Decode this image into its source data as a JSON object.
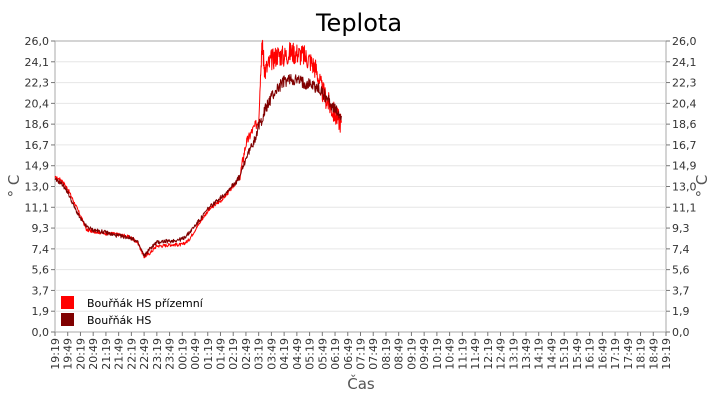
{
  "chart_data": {
    "type": "line",
    "title": "Teplota",
    "xlabel": "Čas",
    "ylabel": "° C",
    "ylim": [
      0,
      26
    ],
    "y_ticks": [
      "0,0",
      "1,9",
      "3,7",
      "5,6",
      "7,4",
      "9,3",
      "11,1",
      "13,0",
      "14,9",
      "16,7",
      "18,6",
      "20,4",
      "22,3",
      "24,1",
      "26,0"
    ],
    "x_ticks": [
      "19:19",
      "19:49",
      "20:19",
      "20:49",
      "21:19",
      "21:49",
      "22:19",
      "22:49",
      "23:19",
      "23:49",
      "00:19",
      "00:49",
      "01:19",
      "01:49",
      "02:19",
      "02:49",
      "03:19",
      "03:49",
      "04:19",
      "04:49",
      "05:19",
      "05:49",
      "06:19",
      "06:49",
      "07:19",
      "07:49",
      "08:19",
      "08:49",
      "09:19",
      "09:49",
      "10:19",
      "10:49",
      "11:19",
      "11:49",
      "12:19",
      "12:49",
      "13:19",
      "13:49",
      "14:19",
      "14:49",
      "15:19",
      "15:49",
      "16:19",
      "16:49",
      "17:19",
      "17:49",
      "18:19",
      "18:49",
      "19:19"
    ],
    "legend_position": "bottom-left",
    "grid": true,
    "series": [
      {
        "name": "Bouřňák HS přízemní",
        "color": "#ff0000",
        "points": [
          [
            0,
            13.8
          ],
          [
            0.5,
            13.6
          ],
          [
            1,
            12.8
          ],
          [
            1.5,
            11.6
          ],
          [
            2,
            10.4
          ],
          [
            2.5,
            9.1
          ],
          [
            3,
            9.0
          ],
          [
            3.5,
            8.9
          ],
          [
            4,
            8.8
          ],
          [
            4.5,
            8.8
          ],
          [
            5,
            8.7
          ],
          [
            5.5,
            8.6
          ],
          [
            6,
            8.4
          ],
          [
            6.5,
            8.0
          ],
          [
            7,
            6.7
          ],
          [
            7.5,
            7.1
          ],
          [
            8,
            7.7
          ],
          [
            8.5,
            7.7
          ],
          [
            9,
            7.8
          ],
          [
            9.5,
            7.8
          ],
          [
            10,
            7.8
          ],
          [
            10.5,
            8.2
          ],
          [
            11,
            9.1
          ],
          [
            11.5,
            10.0
          ],
          [
            12,
            10.8
          ],
          [
            12.5,
            11.3
          ],
          [
            13,
            11.7
          ],
          [
            13.5,
            12.3
          ],
          [
            14,
            13.0
          ],
          [
            14.5,
            13.8
          ],
          [
            15,
            16.8
          ],
          [
            15.5,
            18.0
          ],
          [
            16,
            18.9
          ],
          [
            16.25,
            25.9
          ],
          [
            16.5,
            23.3
          ],
          [
            17,
            24.3
          ],
          [
            17.5,
            24.8
          ],
          [
            18,
            24.6
          ],
          [
            18.5,
            25.0
          ],
          [
            19,
            24.9
          ],
          [
            19.5,
            24.7
          ],
          [
            20,
            24.3
          ],
          [
            20.5,
            23.5
          ],
          [
            21,
            21.5
          ],
          [
            21.5,
            20.4
          ],
          [
            22,
            19.4
          ],
          [
            22.5,
            18.7
          ]
        ]
      },
      {
        "name": "Bouřňák HS",
        "color": "#800000",
        "points": [
          [
            0,
            13.6
          ],
          [
            0.5,
            13.3
          ],
          [
            1,
            12.5
          ],
          [
            1.5,
            11.2
          ],
          [
            2,
            10.1
          ],
          [
            2.5,
            9.4
          ],
          [
            3,
            9.1
          ],
          [
            3.5,
            9.0
          ],
          [
            4,
            8.9
          ],
          [
            4.5,
            8.7
          ],
          [
            5,
            8.6
          ],
          [
            5.5,
            8.5
          ],
          [
            6,
            8.4
          ],
          [
            6.5,
            8.0
          ],
          [
            7,
            6.8
          ],
          [
            7.5,
            7.5
          ],
          [
            8,
            8.0
          ],
          [
            8.5,
            8.1
          ],
          [
            9,
            8.1
          ],
          [
            9.5,
            8.2
          ],
          [
            10,
            8.3
          ],
          [
            10.5,
            8.8
          ],
          [
            11,
            9.5
          ],
          [
            11.5,
            10.2
          ],
          [
            12,
            11.0
          ],
          [
            12.5,
            11.5
          ],
          [
            13,
            12.0
          ],
          [
            13.5,
            12.5
          ],
          [
            14,
            13.2
          ],
          [
            14.5,
            13.8
          ],
          [
            15,
            15.5
          ],
          [
            15.5,
            16.8
          ],
          [
            16,
            18.3
          ],
          [
            16.5,
            19.8
          ],
          [
            17,
            21.0
          ],
          [
            17.5,
            21.8
          ],
          [
            18,
            22.4
          ],
          [
            18.5,
            22.6
          ],
          [
            19,
            22.5
          ],
          [
            19.5,
            22.3
          ],
          [
            20,
            22.2
          ],
          [
            20.5,
            21.9
          ],
          [
            21,
            21.4
          ],
          [
            21.5,
            20.7
          ],
          [
            22,
            19.8
          ],
          [
            22.5,
            19.3
          ]
        ]
      }
    ]
  }
}
